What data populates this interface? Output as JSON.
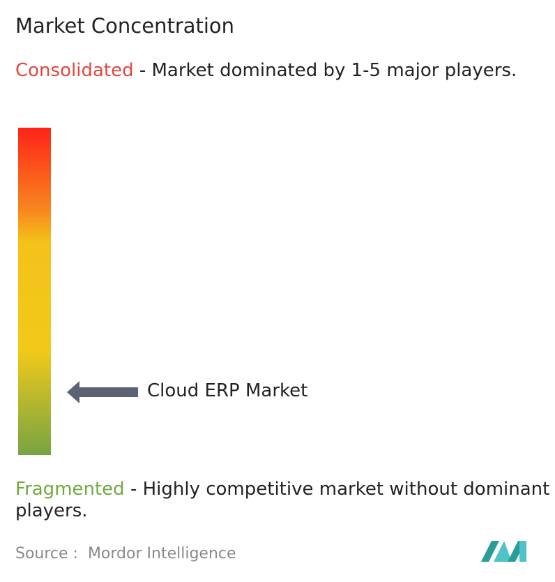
{
  "header": {
    "title": "Market Concentration"
  },
  "consolidated": {
    "label": "Consolidated",
    "description": " - Market dominated by 1-5 major players."
  },
  "marker": {
    "label": "Cloud ERP Market"
  },
  "fragmented": {
    "label": "Fragmented",
    "description": " - Highly competitive market without dominant players."
  },
  "footer": {
    "source": "Source :  Mordor Intelligence"
  }
}
